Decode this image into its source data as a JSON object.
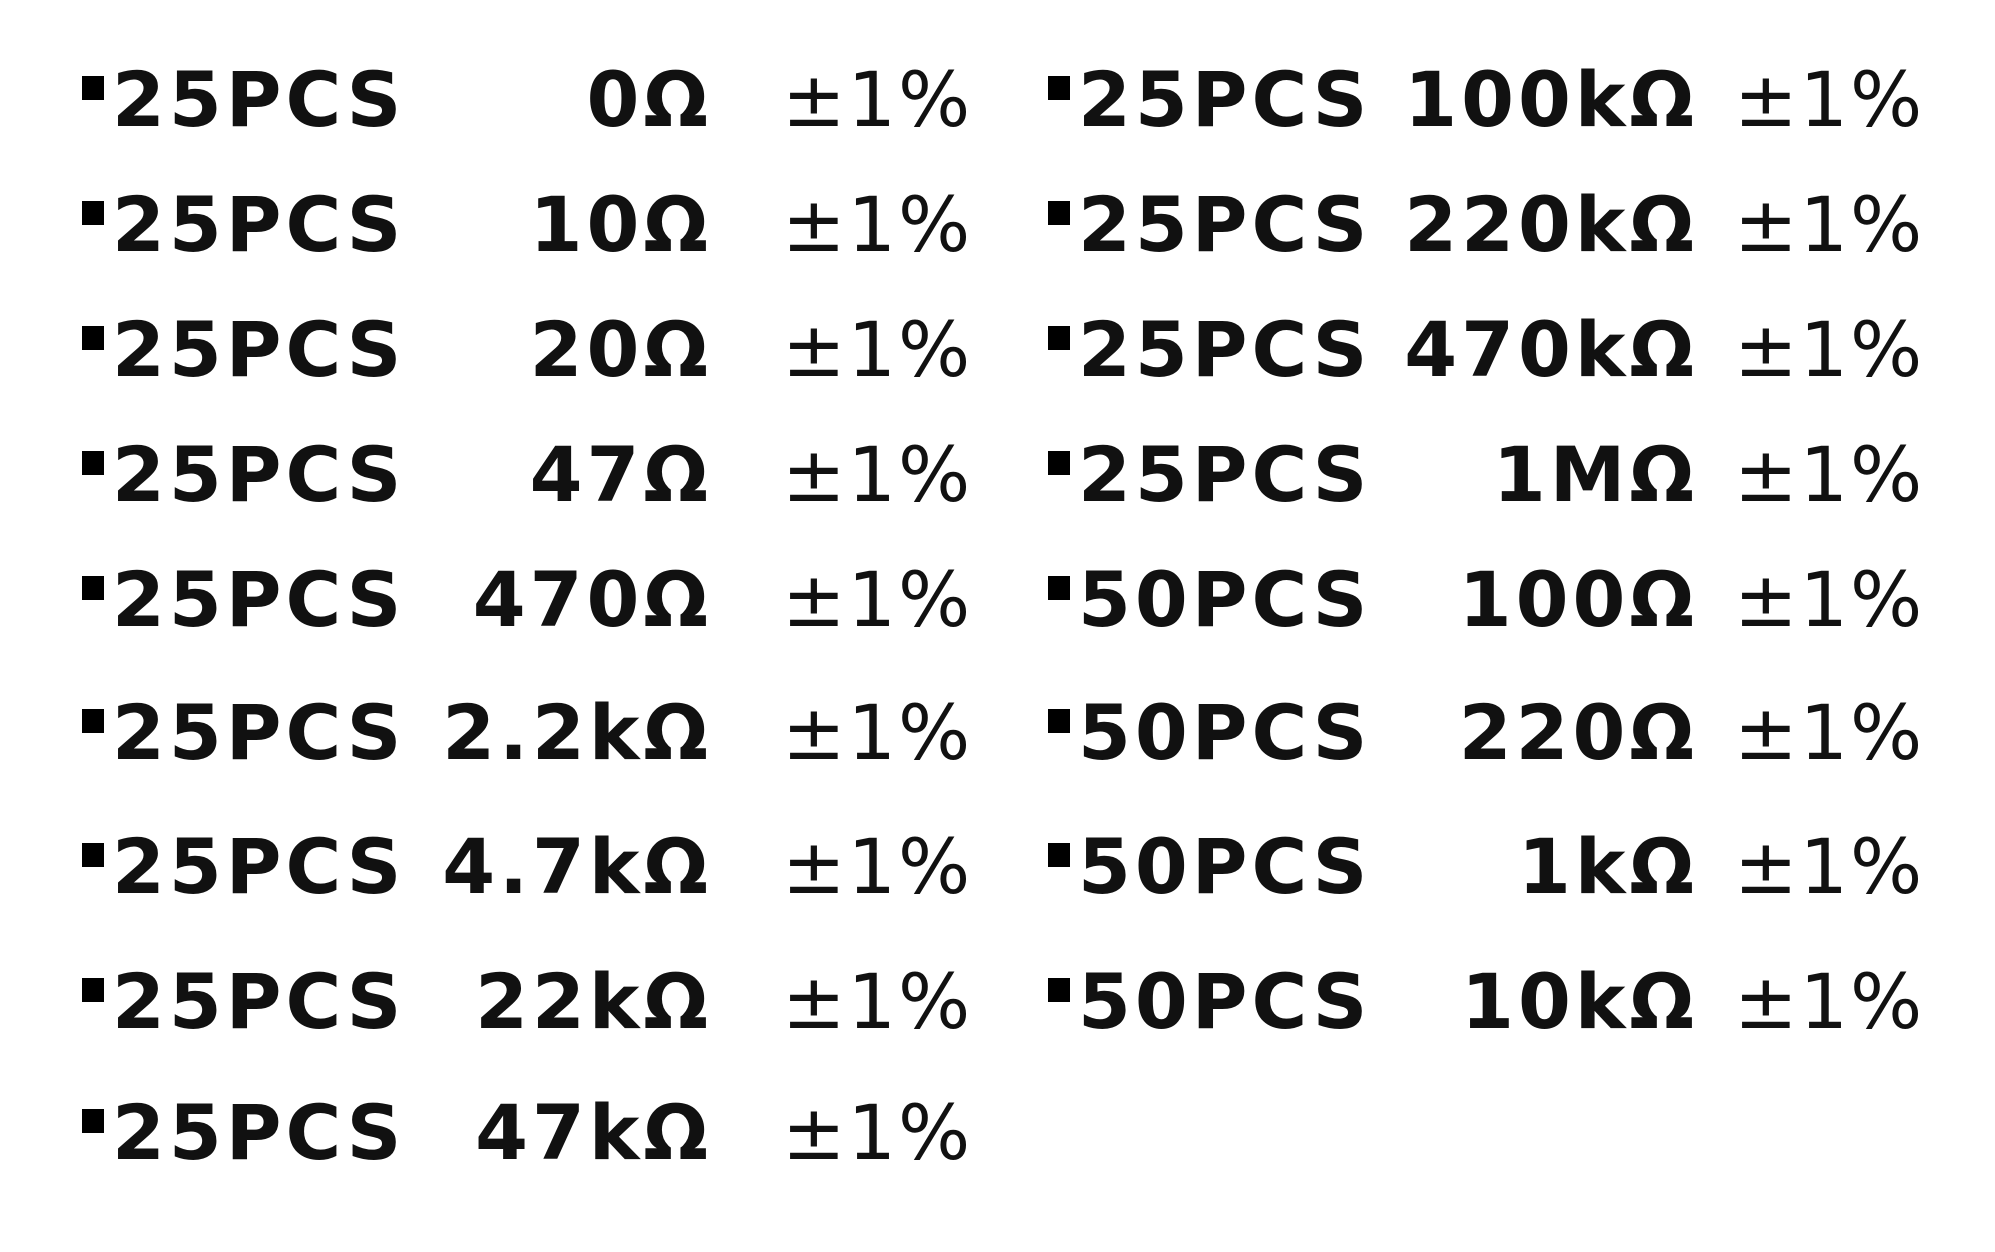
{
  "left_column": [
    {
      "qty": "25PCS",
      "value": "0Ω",
      "tolerance": "±1%"
    },
    {
      "qty": "25PCS",
      "value": "10Ω",
      "tolerance": "±1%"
    },
    {
      "qty": "25PCS",
      "value": "20Ω",
      "tolerance": "±1%"
    },
    {
      "qty": "25PCS",
      "value": "47Ω",
      "tolerance": "±1%"
    },
    {
      "qty": "25PCS",
      "value": "470Ω",
      "tolerance": "±1%"
    },
    {
      "qty": "25PCS",
      "value": "2.2kΩ",
      "tolerance": "±1%"
    },
    {
      "qty": "25PCS",
      "value": "4.7kΩ",
      "tolerance": "±1%"
    },
    {
      "qty": "25PCS",
      "value": "22kΩ",
      "tolerance": "±1%"
    },
    {
      "qty": "25PCS",
      "value": "47kΩ",
      "tolerance": "±1%"
    }
  ],
  "right_column": [
    {
      "qty": "25PCS",
      "value": "100kΩ",
      "tolerance": "±1%"
    },
    {
      "qty": "25PCS",
      "value": "220kΩ",
      "tolerance": "±1%"
    },
    {
      "qty": "25PCS",
      "value": "470kΩ",
      "tolerance": "±1%"
    },
    {
      "qty": "25PCS",
      "value": "1MΩ",
      "tolerance": "±1%"
    },
    {
      "qty": "50PCS",
      "value": "100Ω",
      "tolerance": "±1%"
    },
    {
      "qty": "50PCS",
      "value": "220Ω",
      "tolerance": "±1%"
    },
    {
      "qty": "50PCS",
      "value": "1kΩ",
      "tolerance": "±1%"
    },
    {
      "qty": "50PCS",
      "value": "10kΩ",
      "tolerance": "±1%"
    }
  ]
}
